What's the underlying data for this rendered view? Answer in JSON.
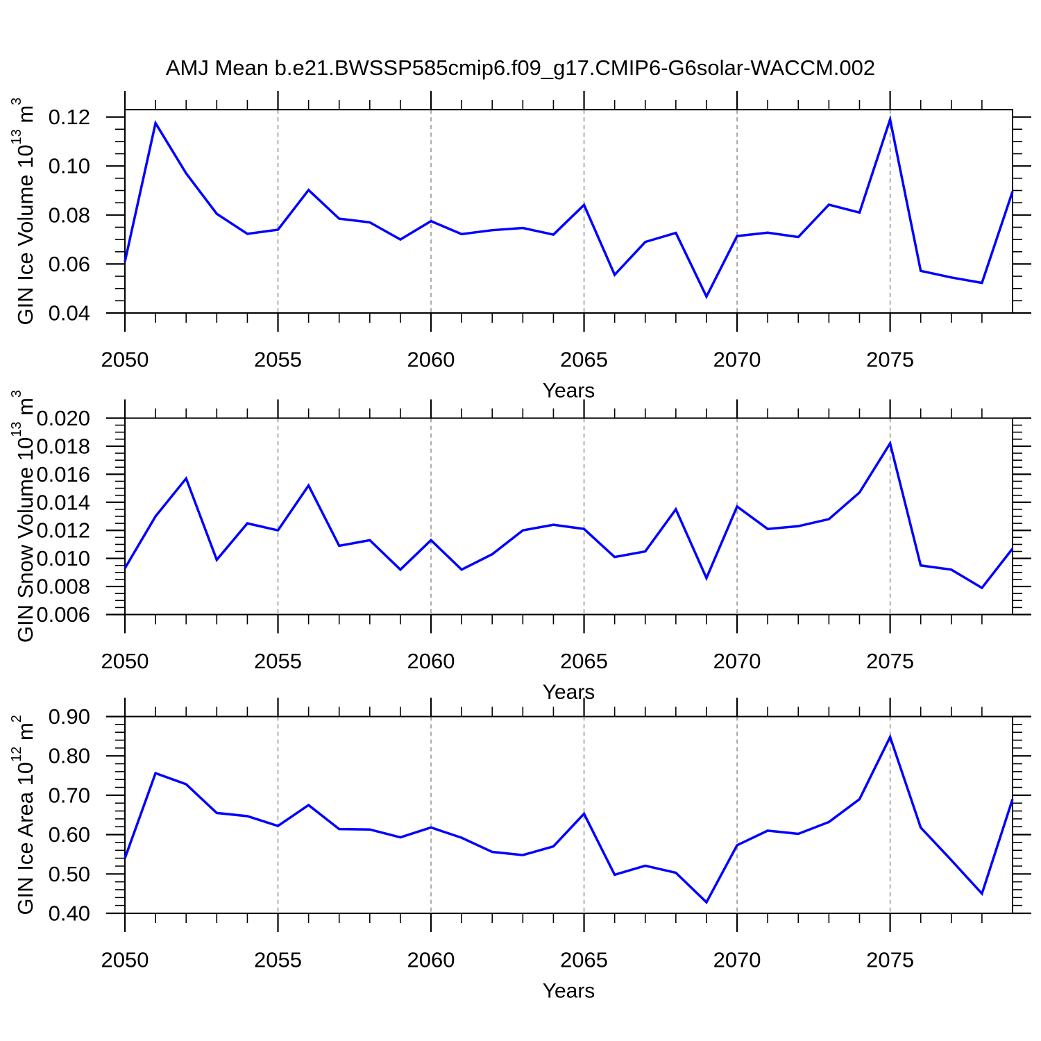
{
  "title": "AMJ Mean b.e21.BWSSP585cmip6.f09_g17.CMIP6-G6solar-WACCM.002",
  "colors": {
    "line": "#0000ff",
    "axis": "#000000",
    "grid": "#888888",
    "text": "#000000",
    "background": "#ffffff"
  },
  "chart_data": [
    {
      "type": "line",
      "title": "",
      "xlabel": "Years",
      "ylabel": "GIN Ice Volume 10^13 m^3",
      "ylabel_segments": [
        {
          "t": "GIN Ice Volume 10"
        },
        {
          "t": "13",
          "sup": true
        },
        {
          "t": " m"
        },
        {
          "t": "3",
          "sup": true
        }
      ],
      "x": [
        2050,
        2051,
        2052,
        2053,
        2054,
        2055,
        2056,
        2057,
        2058,
        2059,
        2060,
        2061,
        2062,
        2063,
        2064,
        2065,
        2066,
        2067,
        2068,
        2069,
        2070,
        2071,
        2072,
        2073,
        2074,
        2075,
        2076,
        2077,
        2078,
        2079
      ],
      "values": [
        0.061,
        0.1175,
        0.097,
        0.0805,
        0.0723,
        0.074,
        0.0902,
        0.0785,
        0.077,
        0.07,
        0.0775,
        0.0722,
        0.0738,
        0.0747,
        0.072,
        0.0841,
        0.0556,
        0.069,
        0.0727,
        0.0467,
        0.0714,
        0.0728,
        0.071,
        0.0842,
        0.081,
        0.119,
        0.0572,
        0.0545,
        0.0523,
        0.0896
      ],
      "xlim": [
        2050,
        2079
      ],
      "ylim": [
        0.04,
        0.123
      ],
      "yticks": [
        0.04,
        0.06,
        0.08,
        0.1,
        0.12
      ],
      "ytick_labels": [
        "0.04",
        "0.06",
        "0.08",
        "0.10",
        "0.12"
      ],
      "ytick_minor_step": 0.005,
      "xticks": [
        2050,
        2055,
        2060,
        2065,
        2070,
        2075
      ],
      "xtick_labels": [
        "2050",
        "2055",
        "2060",
        "2065",
        "2070",
        "2075"
      ],
      "grid_x": [
        2055,
        2060,
        2065,
        2070,
        2075
      ],
      "grid_on": true,
      "legend": "none"
    },
    {
      "type": "line",
      "title": "",
      "xlabel": "Years",
      "ylabel": "GIN Snow Volume 10^13 m^3",
      "ylabel_segments": [
        {
          "t": "GIN Snow Volume 10"
        },
        {
          "t": "13",
          "sup": true
        },
        {
          "t": " m"
        },
        {
          "t": "3",
          "sup": true
        }
      ],
      "x": [
        2050,
        2051,
        2052,
        2053,
        2054,
        2055,
        2056,
        2057,
        2058,
        2059,
        2060,
        2061,
        2062,
        2063,
        2064,
        2065,
        2066,
        2067,
        2068,
        2069,
        2070,
        2071,
        2072,
        2073,
        2074,
        2075,
        2076,
        2077,
        2078,
        2079
      ],
      "values": [
        0.0093,
        0.013,
        0.0157,
        0.0099,
        0.0125,
        0.012,
        0.0152,
        0.0109,
        0.0113,
        0.0092,
        0.0113,
        0.0092,
        0.0103,
        0.012,
        0.0124,
        0.0121,
        0.0101,
        0.0105,
        0.0135,
        0.0086,
        0.0137,
        0.0121,
        0.0123,
        0.0128,
        0.0147,
        0.0182,
        0.0095,
        0.0092,
        0.0079,
        0.0107
      ],
      "xlim": [
        2050,
        2079
      ],
      "ylim": [
        0.006,
        0.02
      ],
      "yticks": [
        0.006,
        0.008,
        0.01,
        0.012,
        0.014,
        0.016,
        0.018,
        0.02
      ],
      "ytick_labels": [
        "0.006",
        "0.008",
        "0.010",
        "0.012",
        "0.014",
        "0.016",
        "0.018",
        "0.020"
      ],
      "ytick_minor_step": 0.0005,
      "xticks": [
        2050,
        2055,
        2060,
        2065,
        2070,
        2075
      ],
      "xtick_labels": [
        "2050",
        "2055",
        "2060",
        "2065",
        "2070",
        "2075"
      ],
      "grid_x": [
        2055,
        2060,
        2065,
        2070,
        2075
      ],
      "grid_on": true,
      "legend": "none"
    },
    {
      "type": "line",
      "title": "",
      "xlabel": "Years",
      "ylabel": "GIN Ice Area 10^12 m^2",
      "ylabel_segments": [
        {
          "t": "GIN Ice Area 10"
        },
        {
          "t": "12",
          "sup": true
        },
        {
          "t": " m"
        },
        {
          "t": "2",
          "sup": true
        }
      ],
      "x": [
        2050,
        2051,
        2052,
        2053,
        2054,
        2055,
        2056,
        2057,
        2058,
        2059,
        2060,
        2061,
        2062,
        2063,
        2064,
        2065,
        2066,
        2067,
        2068,
        2069,
        2070,
        2071,
        2072,
        2073,
        2074,
        2075,
        2076,
        2077,
        2078,
        2079
      ],
      "values": [
        0.54,
        0.756,
        0.728,
        0.655,
        0.647,
        0.622,
        0.675,
        0.614,
        0.613,
        0.593,
        0.618,
        0.592,
        0.556,
        0.548,
        0.57,
        0.653,
        0.498,
        0.521,
        0.503,
        0.428,
        0.573,
        0.61,
        0.602,
        0.632,
        0.69,
        0.848,
        0.618,
        0.535,
        0.45,
        0.69
      ],
      "xlim": [
        2050,
        2079
      ],
      "ylim": [
        0.4,
        0.9
      ],
      "yticks": [
        0.4,
        0.5,
        0.6,
        0.7,
        0.8,
        0.9
      ],
      "ytick_labels": [
        "0.40",
        "0.50",
        "0.60",
        "0.70",
        "0.80",
        "0.90"
      ],
      "ytick_minor_step": 0.02,
      "xticks": [
        2050,
        2055,
        2060,
        2065,
        2070,
        2075
      ],
      "xtick_labels": [
        "2050",
        "2055",
        "2060",
        "2065",
        "2070",
        "2075"
      ],
      "grid_x": [
        2055,
        2060,
        2065,
        2070,
        2075
      ],
      "grid_on": true,
      "legend": "none"
    }
  ]
}
